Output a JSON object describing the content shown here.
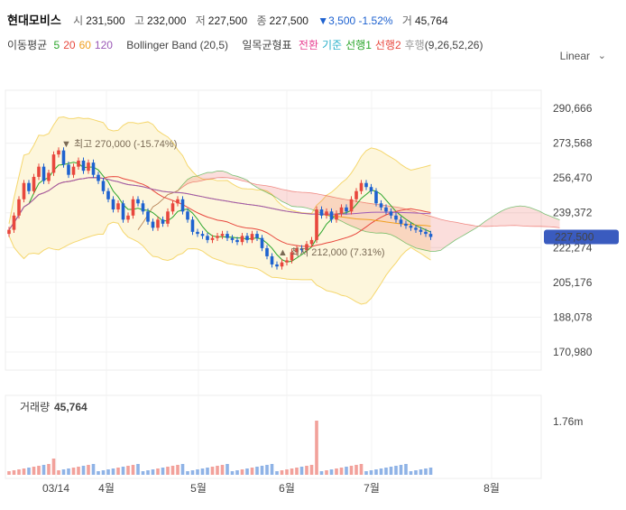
{
  "header": {
    "name": "현대모비스",
    "open_label": "시",
    "open": "231,500",
    "high_label": "고",
    "high": "232,000",
    "low_label": "저",
    "low": "227,500",
    "close_label": "종",
    "close": "227,500",
    "change": "▼3,500 -1.52%",
    "volume_label": "거",
    "volume": "45,764"
  },
  "indicators": {
    "ma_label": "이동평균",
    "ma": [
      {
        "label": "5",
        "color": "#2aa52a"
      },
      {
        "label": "20",
        "color": "#e8473d"
      },
      {
        "label": "60",
        "color": "#f0a020"
      },
      {
        "label": "120",
        "color": "#9b59b6"
      }
    ],
    "bollinger": "Bollinger Band (20,5)",
    "ichimoku_label": "일목균형표",
    "ichimoku": [
      {
        "label": "전환",
        "color": "#e84393"
      },
      {
        "label": "기준",
        "color": "#2ab0c9"
      },
      {
        "label": "선행1",
        "color": "#2aa52a"
      },
      {
        "label": "선행2",
        "color": "#e8473d"
      },
      {
        "label": "후행",
        "color": "#9a9a9a"
      }
    ],
    "ichimoku_params": "(9,26,52,26)"
  },
  "scale_label": "Linear",
  "colors": {
    "up": "#e8473d",
    "down": "#1e62d0",
    "bollinger": "#f5d76e",
    "price_badge": "#3a5bbf"
  },
  "chart_data": {
    "type": "candlestick",
    "y_ticks": [
      "290,666",
      "273,568",
      "256,470",
      "239,372",
      "222,274",
      "205,176",
      "188,078",
      "170,980"
    ],
    "y_tick_values": [
      290666,
      273568,
      256470,
      239372,
      222274,
      205176,
      188078,
      170980
    ],
    "x_ticks": [
      "03/14",
      "4월",
      "5월",
      "6월",
      "7월",
      "8월"
    ],
    "current_price": "227,500",
    "high_annotation": "최고 270,000 (-15.74%)",
    "low_annotation": "최저 212,000 (7.31%)",
    "volume_title": "거래량",
    "volume_value": "45,764",
    "volume_tick": "1.76m",
    "closes": [
      231000,
      238000,
      246000,
      254000,
      250000,
      257000,
      262000,
      255000,
      259000,
      268000,
      270000,
      263000,
      258000,
      262000,
      265000,
      260000,
      264000,
      258000,
      255000,
      250000,
      246000,
      241000,
      244000,
      236000,
      238000,
      246000,
      244000,
      240000,
      235000,
      232000,
      236000,
      234000,
      240000,
      244000,
      246000,
      240000,
      236000,
      230000,
      229000,
      228000,
      226000,
      227000,
      228000,
      229000,
      227000,
      226000,
      225000,
      228000,
      226000,
      229000,
      227000,
      222000,
      218000,
      214000,
      213000,
      215000,
      216000,
      220000,
      222000,
      221000,
      224000,
      226000,
      241000,
      238000,
      240000,
      236000,
      239000,
      242000,
      240000,
      246000,
      250000,
      254000,
      252000,
      250000,
      244000,
      242000,
      240000,
      238000,
      236000,
      234000,
      233000,
      232000,
      231000,
      230000,
      229000,
      227500
    ]
  }
}
